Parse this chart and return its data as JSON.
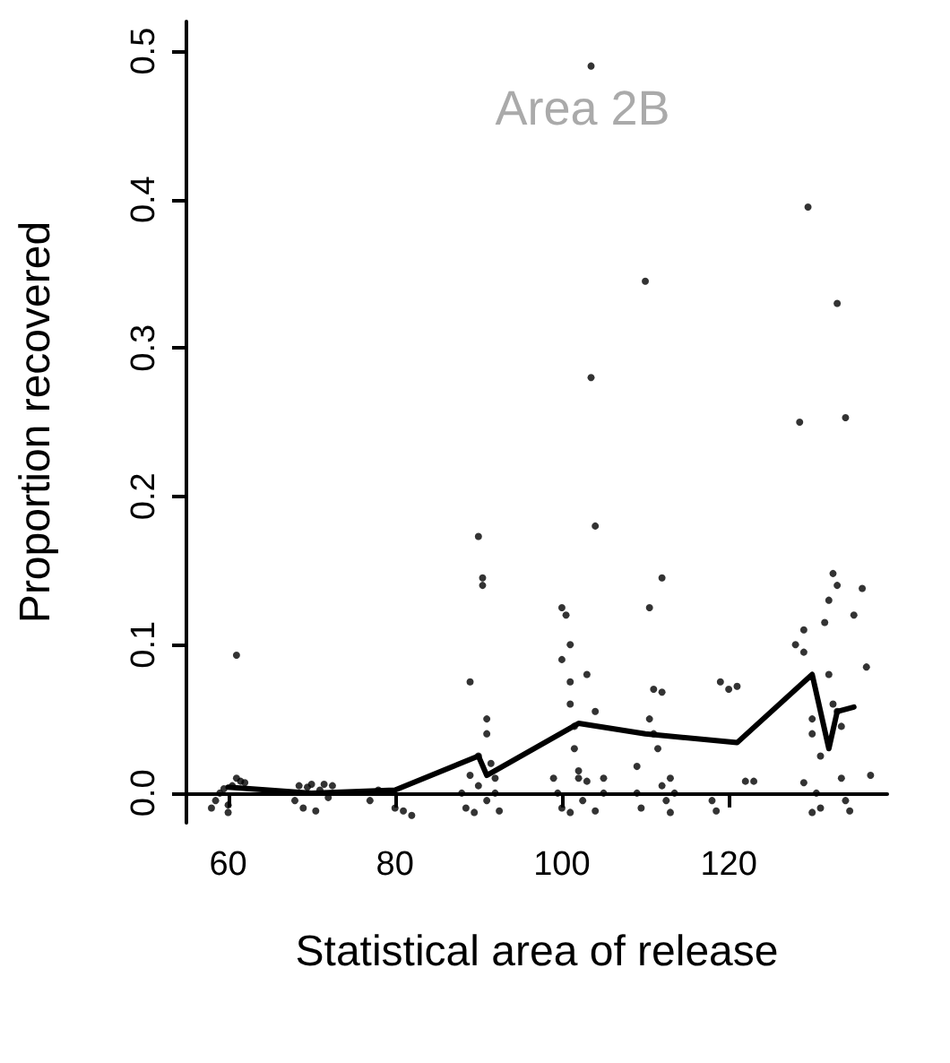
{
  "chart_data": {
    "type": "scatter",
    "title": "Area 2B",
    "xlabel": "Statistical area of release",
    "ylabel": "Proportion recovered",
    "xlim": [
      55,
      139
    ],
    "ylim": [
      -0.02,
      0.52
    ],
    "xticks": [
      60,
      80,
      100,
      120
    ],
    "yticks": [
      {
        "value": 0,
        "label": "0.0"
      },
      {
        "value": 0.1,
        "label": "0.1"
      },
      {
        "value": 0.2,
        "label": "0.2"
      },
      {
        "value": 0.3,
        "label": "0.3"
      },
      {
        "value": 0.4,
        "label": "0.4"
      },
      {
        "value": 0.5,
        "label": "0.5"
      }
    ],
    "grid": false,
    "marker": "circle",
    "series": [
      {
        "color": "#000000",
        "x": [
          58,
          58.5,
          59,
          59.5,
          60,
          60.5,
          61,
          61,
          61.5,
          62,
          60,
          68,
          68.5,
          69,
          69.5,
          70,
          70.5,
          71,
          71.5,
          72,
          72.5,
          77,
          78,
          80,
          81,
          82,
          88,
          88.5,
          89,
          89,
          89.5,
          90,
          90,
          90.5,
          90.5,
          91,
          91,
          91,
          91.5,
          92,
          92,
          92.5,
          90,
          99,
          99.5,
          100,
          100,
          100.5,
          101,
          101,
          101,
          101.5,
          101.5,
          102,
          102,
          102.5,
          103,
          103,
          103.5,
          103.5,
          104,
          104,
          104,
          105,
          105,
          100,
          101,
          109,
          109,
          109.5,
          110,
          110.5,
          110.5,
          111,
          111,
          111.5,
          112,
          112,
          112,
          112.5,
          113,
          113,
          113.5,
          118,
          118.5,
          119,
          120,
          121,
          122,
          123,
          128,
          128.5,
          129,
          129,
          129.5,
          130,
          130,
          130.5,
          131,
          131,
          131.5,
          132,
          132,
          132.5,
          132.5,
          133,
          133,
          133,
          133.5,
          133.5,
          134,
          134,
          134.5,
          135,
          136,
          136.5,
          137,
          129,
          130
        ],
        "values": [
          -0.01,
          -0.005,
          0,
          0.003,
          -0.013,
          0.005,
          0.093,
          0.01,
          0.008,
          0.007,
          -0.008,
          -0.005,
          0.005,
          -0.01,
          0.004,
          0.006,
          -0.012,
          0.002,
          0.006,
          -0.003,
          0.005,
          -0.005,
          0.002,
          -0.01,
          -0.012,
          -0.015,
          0,
          -0.01,
          0.075,
          0.012,
          -0.013,
          0.173,
          0.005,
          0.145,
          0.14,
          0.05,
          0.04,
          -0.005,
          0.02,
          0.01,
          0,
          -0.012,
          0.025,
          0.01,
          0,
          0.125,
          0.09,
          0.12,
          0.1,
          0.075,
          0.06,
          0.045,
          0.03,
          0.015,
          0.01,
          -0.005,
          0.08,
          0.008,
          0.28,
          0.49,
          0.18,
          0.055,
          -0.012,
          0,
          0.01,
          -0.01,
          -0.013,
          0.018,
          0,
          -0.01,
          0.345,
          0.125,
          0.05,
          0.07,
          0.04,
          0.03,
          0.145,
          0.068,
          0.005,
          -0.005,
          -0.013,
          0.01,
          0,
          -0.005,
          -0.012,
          0.075,
          0.07,
          0.072,
          0.008,
          0.008,
          0.1,
          0.25,
          0.11,
          0.095,
          0.395,
          0.05,
          0.04,
          0,
          0.025,
          -0.01,
          0.115,
          0.08,
          0.13,
          0.148,
          0.06,
          0.33,
          0.14,
          0.055,
          0.045,
          0.01,
          0.253,
          -0.005,
          -0.012,
          0.12,
          0.138,
          0.085,
          0.012,
          0.007,
          -0.013
        ]
      },
      {
        "type": "line",
        "marker": "none",
        "color": "#000000",
        "x": [
          60,
          70,
          80,
          90,
          91,
          102,
          110,
          121,
          130,
          132,
          133,
          135
        ],
        "values": [
          0.004,
          0,
          0.002,
          0.025,
          0.012,
          0.047,
          0.04,
          0.034,
          0.08,
          0.03,
          0.055,
          0.058
        ]
      }
    ]
  }
}
